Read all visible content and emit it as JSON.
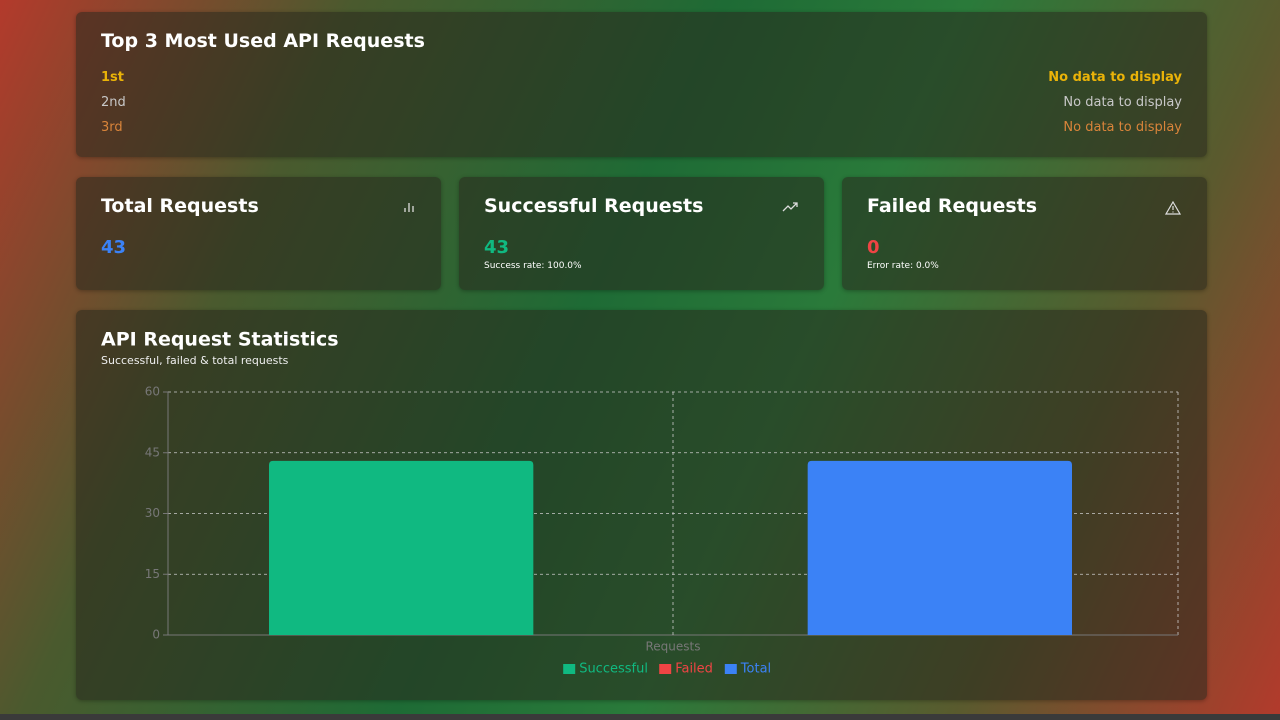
{
  "top3": {
    "title": "Top 3 Most Used API Requests",
    "rows": [
      {
        "rank": "1st",
        "value": "No data to display"
      },
      {
        "rank": "2nd",
        "value": "No data to display"
      },
      {
        "rank": "3rd",
        "value": "No data to display"
      }
    ]
  },
  "cards": [
    {
      "title": "Total Requests",
      "value": 43
    },
    {
      "title": "Successful Requests",
      "value": 43,
      "note": "Success rate: 100.0%"
    },
    {
      "title": "Failed Requests",
      "value": 0,
      "note": "Error rate: 0.0%"
    }
  ],
  "chart_data": {
    "type": "bar",
    "title": "API Request Statistics",
    "subtitle": "Successful, failed & total requests",
    "categories": [
      "Requests"
    ],
    "series": [
      {
        "name": "Successful",
        "color": "#10b981",
        "values": [
          43
        ]
      },
      {
        "name": "Failed",
        "color": "#ef4444",
        "values": [
          0
        ]
      },
      {
        "name": "Total",
        "color": "#3b82f6",
        "values": [
          43
        ]
      }
    ],
    "ylim": [
      0,
      60
    ],
    "yticks": [
      0,
      15,
      30,
      45,
      60
    ],
    "grid": true
  }
}
